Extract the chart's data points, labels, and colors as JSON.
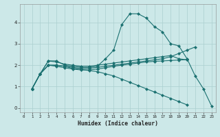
{
  "xlabel": "Humidex (Indice chaleur)",
  "x_values": [
    1,
    2,
    3,
    4,
    5,
    6,
    7,
    8,
    9,
    10,
    11,
    12,
    13,
    14,
    15,
    16,
    17,
    18,
    19,
    20,
    21,
    22,
    23
  ],
  "line_peak": [
    0.9,
    1.6,
    2.2,
    2.2,
    2.0,
    1.95,
    1.9,
    1.9,
    1.95,
    2.3,
    2.7,
    3.9,
    4.4,
    4.4,
    4.2,
    3.8,
    3.55,
    3.0,
    2.9,
    2.3,
    1.5,
    0.9,
    0.1
  ],
  "line_trend1": [
    0.9,
    1.6,
    2.0,
    2.0,
    1.95,
    1.9,
    1.85,
    1.85,
    1.9,
    1.95,
    2.0,
    2.05,
    2.1,
    2.15,
    2.2,
    2.25,
    2.3,
    2.4,
    2.55,
    2.7,
    2.85,
    null,
    null
  ],
  "line_trend2": [
    0.9,
    1.6,
    2.2,
    2.15,
    2.05,
    2.0,
    1.95,
    1.95,
    2.0,
    2.05,
    2.1,
    2.15,
    2.2,
    2.25,
    2.3,
    2.35,
    2.4,
    2.45,
    2.3,
    2.25,
    null,
    null,
    null
  ],
  "line_diag": [
    0.9,
    1.6,
    2.0,
    2.0,
    1.95,
    1.85,
    1.8,
    1.75,
    1.7,
    1.6,
    1.5,
    1.35,
    1.2,
    1.05,
    0.9,
    0.75,
    0.6,
    0.45,
    0.3,
    0.15,
    null,
    null,
    null
  ],
  "line_flat": [
    0.9,
    1.6,
    2.0,
    1.95,
    1.88,
    1.82,
    1.78,
    1.78,
    1.82,
    1.88,
    1.95,
    2.0,
    2.05,
    2.1,
    2.15,
    2.18,
    2.2,
    2.22,
    2.24,
    2.26,
    null,
    null,
    null
  ],
  "bg_color": "#cce8e8",
  "line_color": "#1a7070",
  "grid_color": "#aacfcf",
  "ylim": [
    -0.2,
    4.85
  ],
  "xlim": [
    -0.5,
    23.5
  ],
  "yticks": [
    0,
    1,
    2,
    3,
    4
  ],
  "xticks": [
    0,
    1,
    2,
    3,
    4,
    5,
    6,
    7,
    8,
    9,
    10,
    11,
    12,
    13,
    14,
    15,
    16,
    17,
    18,
    19,
    20,
    21,
    22,
    23
  ]
}
